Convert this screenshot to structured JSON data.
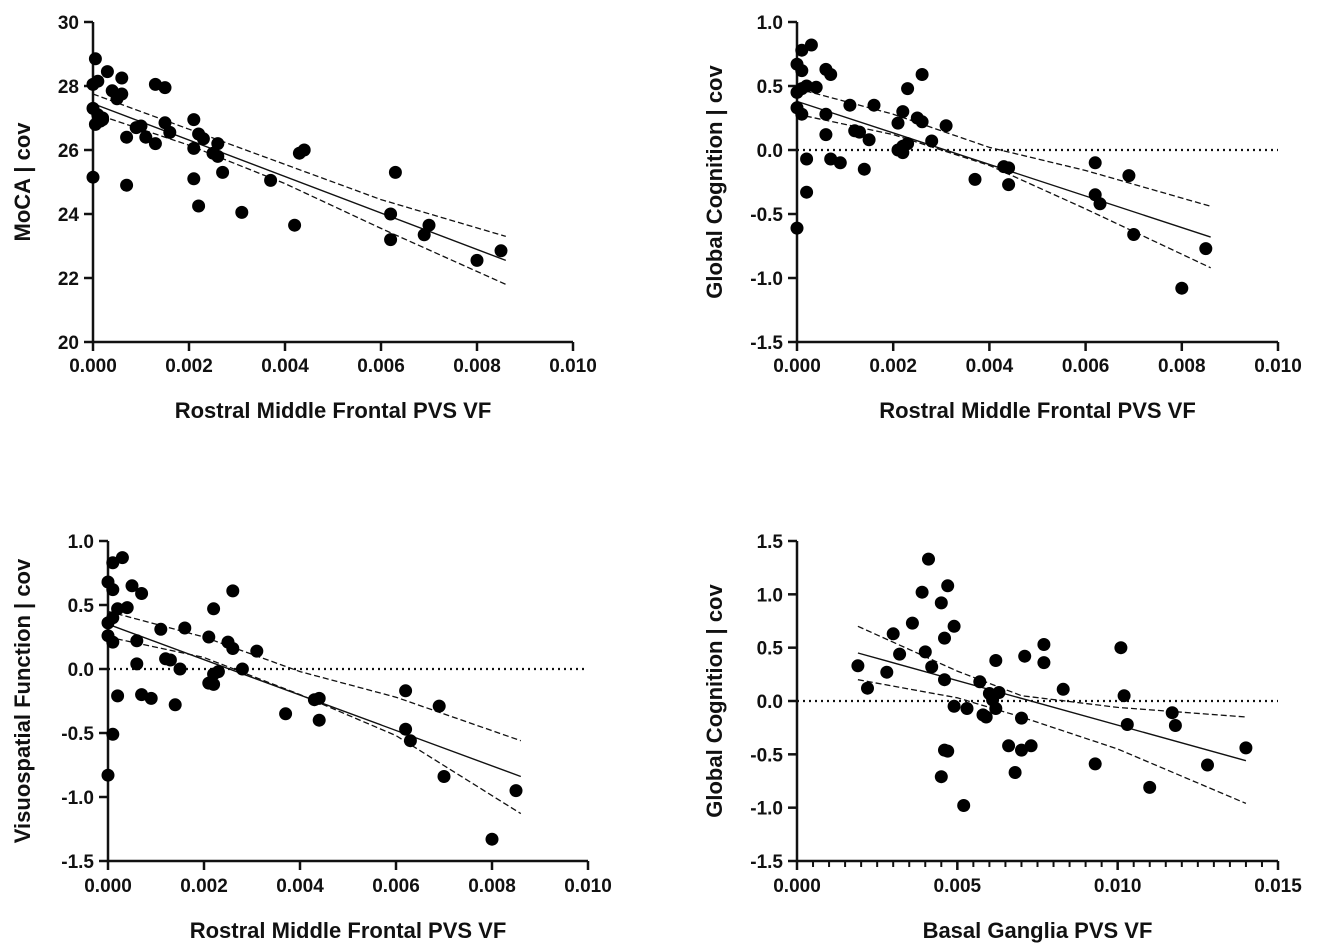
{
  "chart_data": [
    {
      "type": "scatter",
      "xlabel": "Rostral Middle Frontal PVS VF",
      "ylabel": "MoCA | cov",
      "xlim": [
        0,
        0.01
      ],
      "ylim": [
        20,
        30
      ],
      "xticks": [
        "0.000",
        "0.002",
        "0.004",
        "0.006",
        "0.008",
        "0.010"
      ],
      "yticks": [
        "20",
        "22",
        "24",
        "26",
        "28",
        "30"
      ],
      "minor_x_ticks": false,
      "zero_line": false,
      "fit": {
        "x0": 0.0,
        "y0": 27.45,
        "x1": 0.0086,
        "y1": 22.55
      },
      "ci_upper": [
        [
          0.0,
          27.75
        ],
        [
          0.002,
          26.65
        ],
        [
          0.004,
          25.55
        ],
        [
          0.006,
          24.45
        ],
        [
          0.0086,
          23.3
        ]
      ],
      "ci_lower": [
        [
          0.0,
          27.15
        ],
        [
          0.002,
          26.15
        ],
        [
          0.004,
          24.95
        ],
        [
          0.006,
          23.55
        ],
        [
          0.0086,
          21.8
        ]
      ],
      "points": [
        [
          5e-05,
          28.85
        ],
        [
          0.0003,
          28.45
        ],
        [
          0.0006,
          28.25
        ],
        [
          0.0,
          28.05
        ],
        [
          0.0001,
          28.15
        ],
        [
          0.0004,
          27.85
        ],
        [
          0.0005,
          27.6
        ],
        [
          0.0006,
          27.75
        ],
        [
          0.0,
          27.3
        ],
        [
          0.0001,
          27.1
        ],
        [
          0.0002,
          27.0
        ],
        [
          5e-05,
          26.8
        ],
        [
          0.00015,
          26.9
        ],
        [
          0.0002,
          26.95
        ],
        [
          0.0,
          25.15
        ],
        [
          0.0007,
          26.4
        ],
        [
          0.0007,
          24.9
        ],
        [
          0.0009,
          26.7
        ],
        [
          0.001,
          26.75
        ],
        [
          0.0011,
          26.4
        ],
        [
          0.0013,
          28.05
        ],
        [
          0.0015,
          27.95
        ],
        [
          0.0013,
          26.2
        ],
        [
          0.0015,
          26.85
        ],
        [
          0.0016,
          26.55
        ],
        [
          0.0021,
          26.95
        ],
        [
          0.0022,
          26.5
        ],
        [
          0.0023,
          26.35
        ],
        [
          0.0021,
          26.05
        ],
        [
          0.0025,
          25.9
        ],
        [
          0.0026,
          26.2
        ],
        [
          0.0026,
          25.8
        ],
        [
          0.0027,
          25.3
        ],
        [
          0.0021,
          25.1
        ],
        [
          0.0022,
          24.25
        ],
        [
          0.0031,
          24.05
        ],
        [
          0.0037,
          25.05
        ],
        [
          0.0042,
          23.65
        ],
        [
          0.0043,
          25.9
        ],
        [
          0.0044,
          26.0
        ],
        [
          0.0062,
          23.2
        ],
        [
          0.0062,
          24.0
        ],
        [
          0.0063,
          25.3
        ],
        [
          0.0069,
          23.35
        ],
        [
          0.007,
          23.65
        ],
        [
          0.008,
          22.55
        ],
        [
          0.0085,
          22.85
        ]
      ]
    },
    {
      "type": "scatter",
      "xlabel": "Rostral Middle Frontal PVS VF",
      "ylabel": "Global Cognition | cov",
      "xlim": [
        0,
        0.01
      ],
      "ylim": [
        -1.5,
        1.0
      ],
      "xticks": [
        "0.000",
        "0.002",
        "0.004",
        "0.006",
        "0.008",
        "0.010"
      ],
      "yticks": [
        "-1.5",
        "-1.0",
        "-0.5",
        "0.0",
        "0.5",
        "1.0"
      ],
      "minor_x_ticks": false,
      "zero_line": true,
      "fit": {
        "x0": 0.0,
        "y0": 0.38,
        "x1": 0.0086,
        "y1": -0.68
      },
      "ci_upper": [
        [
          0.0,
          0.48
        ],
        [
          0.002,
          0.28
        ],
        [
          0.004,
          0.02
        ],
        [
          0.006,
          -0.16
        ],
        [
          0.0086,
          -0.44
        ]
      ],
      "ci_lower": [
        [
          0.0,
          0.28
        ],
        [
          0.002,
          0.12
        ],
        [
          0.004,
          -0.12
        ],
        [
          0.006,
          -0.46
        ],
        [
          0.0086,
          -0.92
        ]
      ],
      "points": [
        [
          0.0001,
          0.78
        ],
        [
          0.0003,
          0.82
        ],
        [
          0.0,
          0.67
        ],
        [
          0.0001,
          0.62
        ],
        [
          0.0006,
          0.63
        ],
        [
          0.0007,
          0.59
        ],
        [
          0.0,
          0.45
        ],
        [
          0.0001,
          0.48
        ],
        [
          0.0002,
          0.5
        ],
        [
          0.0004,
          0.49
        ],
        [
          0.0,
          0.33
        ],
        [
          0.0001,
          0.28
        ],
        [
          0.0006,
          0.28
        ],
        [
          0.0006,
          0.12
        ],
        [
          0.0011,
          0.35
        ],
        [
          0.0016,
          0.35
        ],
        [
          0.0012,
          0.15
        ],
        [
          0.0013,
          0.14
        ],
        [
          0.0015,
          0.08
        ],
        [
          0.0007,
          -0.07
        ],
        [
          0.0009,
          -0.1
        ],
        [
          0.0002,
          -0.07
        ],
        [
          0.0014,
          -0.15
        ],
        [
          0.0002,
          -0.33
        ],
        [
          0.0,
          -0.61
        ],
        [
          0.0021,
          0.21
        ],
        [
          0.0022,
          0.3
        ],
        [
          0.0023,
          0.48
        ],
        [
          0.0025,
          0.25
        ],
        [
          0.0026,
          0.22
        ],
        [
          0.0026,
          0.59
        ],
        [
          0.0031,
          0.19
        ],
        [
          0.0022,
          0.03
        ],
        [
          0.0023,
          0.05
        ],
        [
          0.0021,
          0.0
        ],
        [
          0.0022,
          -0.02
        ],
        [
          0.0028,
          0.07
        ],
        [
          0.0037,
          -0.23
        ],
        [
          0.0043,
          -0.13
        ],
        [
          0.0044,
          -0.14
        ],
        [
          0.0044,
          -0.27
        ],
        [
          0.0062,
          -0.35
        ],
        [
          0.0063,
          -0.42
        ],
        [
          0.0062,
          -0.1
        ],
        [
          0.0069,
          -0.2
        ],
        [
          0.007,
          -0.66
        ],
        [
          0.008,
          -1.08
        ],
        [
          0.0085,
          -0.77
        ]
      ]
    },
    {
      "type": "scatter",
      "xlabel": "Rostral Middle Frontal PVS VF",
      "ylabel": "Visuospatial Function | cov",
      "xlim": [
        0,
        0.01
      ],
      "ylim": [
        -1.5,
        1.0
      ],
      "xticks": [
        "0.000",
        "0.002",
        "0.004",
        "0.006",
        "0.008",
        "0.010"
      ],
      "yticks": [
        "-1.5",
        "-1.0",
        "-0.5",
        "0.0",
        "0.5",
        "1.0"
      ],
      "minor_x_ticks": false,
      "zero_line": true,
      "fit": {
        "x0": 0.0,
        "y0": 0.35,
        "x1": 0.0086,
        "y1": -0.84
      },
      "ci_upper": [
        [
          0.0,
          0.45
        ],
        [
          0.002,
          0.25
        ],
        [
          0.004,
          -0.02
        ],
        [
          0.006,
          -0.22
        ],
        [
          0.0086,
          -0.56
        ]
      ],
      "ci_lower": [
        [
          0.0,
          0.25
        ],
        [
          0.002,
          0.09
        ],
        [
          0.004,
          -0.2
        ],
        [
          0.006,
          -0.52
        ],
        [
          0.0086,
          -1.13
        ]
      ],
      "points": [
        [
          0.0001,
          0.83
        ],
        [
          0.0003,
          0.87
        ],
        [
          0.0,
          0.68
        ],
        [
          0.0001,
          0.62
        ],
        [
          0.0005,
          0.65
        ],
        [
          0.0007,
          0.59
        ],
        [
          0.0,
          0.36
        ],
        [
          0.0001,
          0.4
        ],
        [
          0.0002,
          0.47
        ],
        [
          0.0004,
          0.48
        ],
        [
          0.0,
          0.26
        ],
        [
          0.0001,
          0.21
        ],
        [
          0.0006,
          0.22
        ],
        [
          0.0006,
          0.04
        ],
        [
          0.0011,
          0.31
        ],
        [
          0.0016,
          0.32
        ],
        [
          0.0012,
          0.08
        ],
        [
          0.0013,
          0.07
        ],
        [
          0.0015,
          0.0
        ],
        [
          0.0007,
          -0.2
        ],
        [
          0.0009,
          -0.23
        ],
        [
          0.0002,
          -0.21
        ],
        [
          0.0014,
          -0.28
        ],
        [
          0.0001,
          -0.51
        ],
        [
          0.0,
          -0.83
        ],
        [
          0.0021,
          0.25
        ],
        [
          0.0022,
          0.47
        ],
        [
          0.0025,
          0.21
        ],
        [
          0.0026,
          0.16
        ],
        [
          0.0026,
          0.61
        ],
        [
          0.0031,
          0.14
        ],
        [
          0.0022,
          -0.04
        ],
        [
          0.0023,
          -0.02
        ],
        [
          0.0021,
          -0.11
        ],
        [
          0.0022,
          -0.12
        ],
        [
          0.0028,
          0.0
        ],
        [
          0.0037,
          -0.35
        ],
        [
          0.0043,
          -0.24
        ],
        [
          0.0044,
          -0.23
        ],
        [
          0.0044,
          -0.4
        ],
        [
          0.0062,
          -0.47
        ],
        [
          0.0063,
          -0.56
        ],
        [
          0.0062,
          -0.17
        ],
        [
          0.0069,
          -0.29
        ],
        [
          0.007,
          -0.84
        ],
        [
          0.008,
          -1.33
        ],
        [
          0.0085,
          -0.95
        ]
      ]
    },
    {
      "type": "scatter",
      "xlabel": "Basal Ganglia PVS VF",
      "ylabel": "Global Cognition | cov",
      "xlim": [
        0,
        0.015
      ],
      "ylim": [
        -1.5,
        1.5
      ],
      "xticks": [
        "0.000",
        "0.005",
        "0.010",
        "0.015"
      ],
      "yticks": [
        "-1.5",
        "-1.0",
        "-0.5",
        "0.0",
        "0.5",
        "1.0",
        "1.5"
      ],
      "minor_x_ticks": true,
      "zero_line": true,
      "fit": {
        "x0": 0.0019,
        "y0": 0.45,
        "x1": 0.014,
        "y1": -0.56
      },
      "ci_upper": [
        [
          0.0019,
          0.7
        ],
        [
          0.005,
          0.28
        ],
        [
          0.007,
          0.05
        ],
        [
          0.01,
          -0.06
        ],
        [
          0.014,
          -0.15
        ]
      ],
      "ci_lower": [
        [
          0.0019,
          0.2
        ],
        [
          0.005,
          0.03
        ],
        [
          0.007,
          -0.15
        ],
        [
          0.01,
          -0.45
        ],
        [
          0.014,
          -0.96
        ]
      ],
      "points": [
        [
          0.0019,
          0.33
        ],
        [
          0.0022,
          0.12
        ],
        [
          0.0028,
          0.27
        ],
        [
          0.003,
          0.63
        ],
        [
          0.0032,
          0.44
        ],
        [
          0.0036,
          0.73
        ],
        [
          0.0039,
          1.02
        ],
        [
          0.004,
          0.46
        ],
        [
          0.0041,
          1.33
        ],
        [
          0.0042,
          0.32
        ],
        [
          0.0045,
          0.92
        ],
        [
          0.0046,
          0.59
        ],
        [
          0.0047,
          1.08
        ],
        [
          0.0049,
          0.7
        ],
        [
          0.0046,
          0.2
        ],
        [
          0.0046,
          -0.46
        ],
        [
          0.0047,
          -0.47
        ],
        [
          0.0045,
          -0.71
        ],
        [
          0.0049,
          -0.05
        ],
        [
          0.0052,
          -0.98
        ],
        [
          0.0053,
          -0.07
        ],
        [
          0.0057,
          0.18
        ],
        [
          0.0058,
          -0.13
        ],
        [
          0.0059,
          -0.15
        ],
        [
          0.006,
          0.07
        ],
        [
          0.0061,
          0.01
        ],
        [
          0.0062,
          0.38
        ],
        [
          0.0063,
          0.08
        ],
        [
          0.0062,
          -0.07
        ],
        [
          0.0066,
          -0.42
        ],
        [
          0.0068,
          -0.67
        ],
        [
          0.007,
          -0.46
        ],
        [
          0.007,
          -0.16
        ],
        [
          0.0071,
          0.42
        ],
        [
          0.0073,
          -0.42
        ],
        [
          0.0077,
          0.53
        ],
        [
          0.0077,
          0.36
        ],
        [
          0.0083,
          0.11
        ],
        [
          0.0093,
          -0.59
        ],
        [
          0.0101,
          0.5
        ],
        [
          0.0102,
          0.05
        ],
        [
          0.0103,
          -0.22
        ],
        [
          0.011,
          -0.81
        ],
        [
          0.0117,
          -0.11
        ],
        [
          0.0118,
          -0.23
        ],
        [
          0.0128,
          -0.6
        ],
        [
          0.014,
          -0.44
        ]
      ]
    }
  ]
}
